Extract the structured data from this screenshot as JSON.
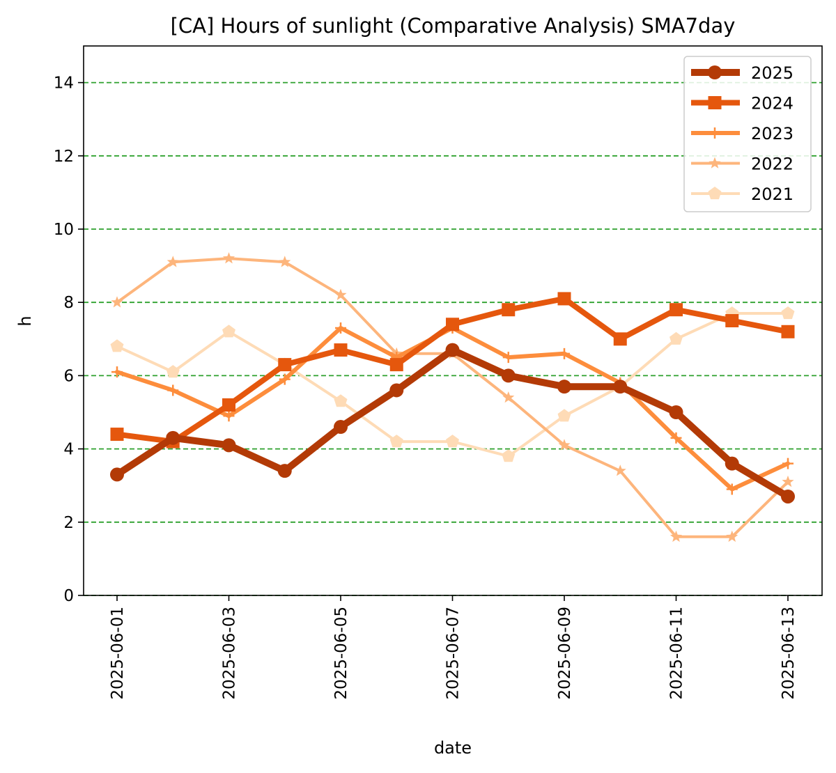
{
  "chart_data": {
    "type": "line",
    "title": "[CA] Hours of sunlight (Comparative Analysis) SMA7day",
    "xlabel": "date",
    "ylabel": "h",
    "ylim": [
      0,
      15
    ],
    "yticks": [
      0,
      2,
      4,
      6,
      8,
      10,
      12,
      14
    ],
    "grid": "horizontal dashed",
    "grid_color": "#2ca02c",
    "legend_position": "top-right",
    "x": [
      "2025-06-01",
      "2025-06-02",
      "2025-06-03",
      "2025-06-04",
      "2025-06-05",
      "2025-06-06",
      "2025-06-07",
      "2025-06-08",
      "2025-06-09",
      "2025-06-10",
      "2025-06-11",
      "2025-06-12",
      "2025-06-13"
    ],
    "xticks": [
      "2025-06-01",
      "2025-06-03",
      "2025-06-05",
      "2025-06-07",
      "2025-06-09",
      "2025-06-11",
      "2025-06-13"
    ],
    "series": [
      {
        "name": "2025",
        "color": "#b33a06",
        "marker": "circle",
        "values": [
          3.3,
          4.3,
          4.1,
          3.4,
          4.6,
          5.6,
          6.7,
          6.0,
          5.7,
          5.7,
          5.0,
          3.6,
          2.7
        ]
      },
      {
        "name": "2024",
        "color": "#e5570d",
        "marker": "square",
        "values": [
          4.4,
          4.2,
          5.2,
          6.3,
          6.7,
          6.3,
          7.4,
          7.8,
          8.1,
          7.0,
          7.8,
          7.5,
          7.2
        ]
      },
      {
        "name": "2023",
        "color": "#fd8d3c",
        "marker": "plus",
        "values": [
          6.1,
          5.6,
          4.9,
          5.9,
          7.3,
          6.5,
          7.3,
          6.5,
          6.6,
          5.8,
          4.3,
          2.9,
          3.6
        ]
      },
      {
        "name": "2022",
        "color": "#fdb57c",
        "marker": "star",
        "values": [
          8.0,
          9.1,
          9.2,
          9.1,
          8.2,
          6.6,
          6.6,
          5.4,
          4.1,
          3.4,
          1.6,
          1.6,
          3.1
        ]
      },
      {
        "name": "2021",
        "color": "#fedbb6",
        "marker": "pentagon",
        "values": [
          6.8,
          6.1,
          7.2,
          6.3,
          5.3,
          4.2,
          4.2,
          3.8,
          4.9,
          5.7,
          7.0,
          7.7,
          7.7
        ]
      }
    ]
  }
}
